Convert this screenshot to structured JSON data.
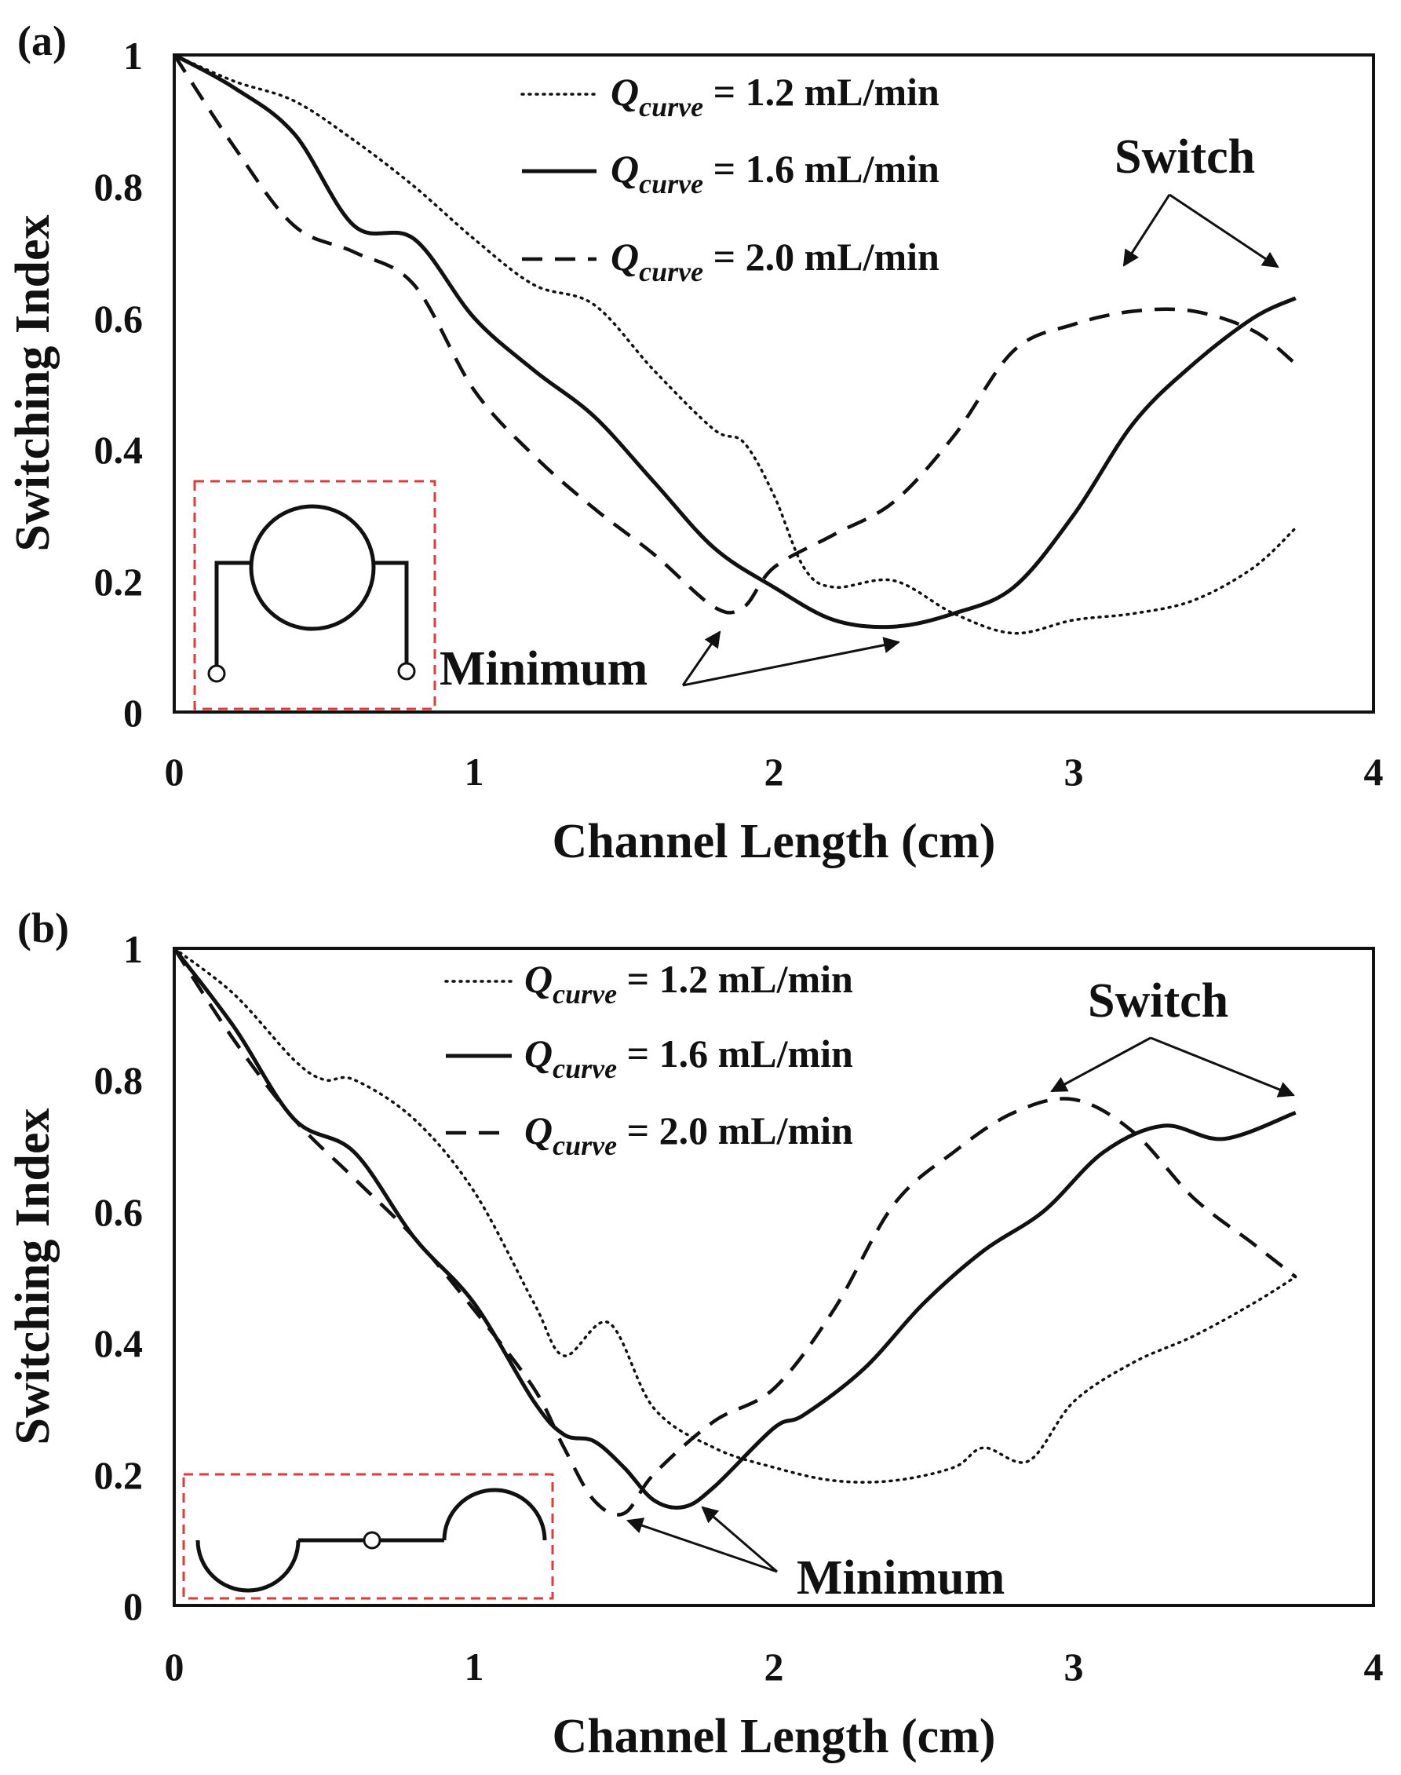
{
  "chart_data": [
    {
      "type": "line",
      "panel_label": "(a)",
      "xlabel": "Channel Length (cm)",
      "ylabel": "Switching Index",
      "xlim": [
        0,
        4
      ],
      "ylim": [
        0,
        1
      ],
      "x_ticks": [
        "0",
        "1",
        "2",
        "3",
        "4"
      ],
      "y_ticks": [
        "0",
        "0.2",
        "0.4",
        "0.6",
        "0.8",
        "1"
      ],
      "grid": false,
      "legend_position": "top-center",
      "series": [
        {
          "name": "Q_curve = 1.2 mL/min",
          "legend_symbol": "Q",
          "legend_subscript": "curve",
          "legend_value": " = 1.2 mL/min",
          "style": "dotted",
          "x": [
            0,
            0.2,
            0.4,
            0.6,
            0.8,
            1.0,
            1.2,
            1.4,
            1.6,
            1.8,
            1.9,
            2.0,
            2.1,
            2.2,
            2.4,
            2.6,
            2.8,
            3.0,
            3.2,
            3.4,
            3.6,
            3.74
          ],
          "y": [
            1.0,
            0.96,
            0.93,
            0.87,
            0.8,
            0.72,
            0.65,
            0.62,
            0.52,
            0.43,
            0.41,
            0.33,
            0.22,
            0.19,
            0.2,
            0.15,
            0.12,
            0.14,
            0.15,
            0.17,
            0.22,
            0.28
          ]
        },
        {
          "name": "Q_curve = 1.6 mL/min",
          "legend_symbol": "Q",
          "legend_subscript": "curve",
          "legend_value": " = 1.6 mL/min",
          "style": "solid",
          "x": [
            0,
            0.2,
            0.4,
            0.6,
            0.8,
            1.0,
            1.2,
            1.4,
            1.6,
            1.8,
            2.0,
            2.2,
            2.4,
            2.6,
            2.8,
            3.0,
            3.2,
            3.4,
            3.6,
            3.74
          ],
          "y": [
            1.0,
            0.95,
            0.88,
            0.74,
            0.72,
            0.6,
            0.52,
            0.45,
            0.35,
            0.25,
            0.19,
            0.14,
            0.13,
            0.15,
            0.19,
            0.3,
            0.44,
            0.53,
            0.6,
            0.63
          ]
        },
        {
          "name": "Q_curve = 2.0 mL/min",
          "legend_symbol": "Q",
          "legend_subscript": "curve",
          "legend_value": " = 2.0 mL/min",
          "style": "dashed",
          "x": [
            0,
            0.2,
            0.4,
            0.6,
            0.8,
            1.0,
            1.2,
            1.4,
            1.6,
            1.8,
            1.9,
            2.0,
            2.2,
            2.4,
            2.6,
            2.8,
            3.0,
            3.2,
            3.4,
            3.6,
            3.74
          ],
          "y": [
            1.0,
            0.86,
            0.74,
            0.7,
            0.65,
            0.49,
            0.39,
            0.31,
            0.24,
            0.16,
            0.16,
            0.22,
            0.27,
            0.32,
            0.42,
            0.55,
            0.59,
            0.61,
            0.61,
            0.58,
            0.53
          ]
        }
      ],
      "annotations": [
        {
          "text": "Switch",
          "targets": [
            {
              "x": 3.1,
              "y": 0.67
            },
            {
              "x": 3.74,
              "y": 0.67
            }
          ]
        },
        {
          "text": "Minimum",
          "targets": [
            {
              "x": 1.83,
              "y": 0.13
            },
            {
              "x": 2.42,
              "y": 0.11
            }
          ]
        }
      ],
      "inset": "microchannel schematic (circular loop)"
    },
    {
      "type": "line",
      "panel_label": "(b)",
      "xlabel": "Channel Length (cm)",
      "ylabel": "Switching Index",
      "xlim": [
        0,
        4
      ],
      "ylim": [
        0,
        1
      ],
      "x_ticks": [
        "0",
        "1",
        "2",
        "3",
        "4"
      ],
      "y_ticks": [
        "0",
        "0.2",
        "0.4",
        "0.6",
        "0.8",
        "1"
      ],
      "grid": false,
      "legend_position": "top-center",
      "series": [
        {
          "name": "Q_curve = 1.2 mL/min",
          "legend_symbol": "Q",
          "legend_subscript": "curve",
          "legend_value": " = 1.2 mL/min",
          "style": "dotted",
          "x": [
            0,
            0.2,
            0.4,
            0.5,
            0.6,
            0.8,
            1.0,
            1.2,
            1.3,
            1.45,
            1.6,
            1.8,
            2.0,
            2.2,
            2.4,
            2.6,
            2.7,
            2.85,
            3.0,
            3.2,
            3.4,
            3.6,
            3.74
          ],
          "y": [
            1.0,
            0.93,
            0.83,
            0.8,
            0.8,
            0.74,
            0.63,
            0.46,
            0.38,
            0.43,
            0.3,
            0.24,
            0.21,
            0.19,
            0.19,
            0.21,
            0.24,
            0.22,
            0.31,
            0.37,
            0.41,
            0.46,
            0.5
          ]
        },
        {
          "name": "Q_curve = 1.6 mL/min",
          "legend_symbol": "Q",
          "legend_subscript": "curve",
          "legend_value": " = 1.6 mL/min",
          "style": "solid",
          "x": [
            0,
            0.2,
            0.4,
            0.6,
            0.8,
            1.0,
            1.2,
            1.3,
            1.4,
            1.5,
            1.6,
            1.7,
            1.8,
            2.0,
            2.1,
            2.3,
            2.5,
            2.7,
            2.9,
            3.1,
            3.3,
            3.5,
            3.74
          ],
          "y": [
            1.0,
            0.88,
            0.74,
            0.69,
            0.56,
            0.46,
            0.31,
            0.26,
            0.25,
            0.21,
            0.16,
            0.15,
            0.18,
            0.27,
            0.29,
            0.36,
            0.46,
            0.54,
            0.6,
            0.69,
            0.73,
            0.71,
            0.75
          ]
        },
        {
          "name": "Q_curve = 2.0 mL/min",
          "legend_symbol": "Q",
          "legend_subscript": "curve",
          "legend_value": " = 2.0 mL/min",
          "style": "dashed",
          "x": [
            0,
            0.2,
            0.4,
            0.6,
            0.8,
            1.0,
            1.2,
            1.3,
            1.4,
            1.5,
            1.6,
            1.8,
            2.0,
            2.2,
            2.4,
            2.6,
            2.8,
            3.0,
            3.2,
            3.4,
            3.6,
            3.74
          ],
          "y": [
            1.0,
            0.86,
            0.74,
            0.65,
            0.56,
            0.45,
            0.33,
            0.24,
            0.16,
            0.14,
            0.2,
            0.28,
            0.33,
            0.45,
            0.61,
            0.69,
            0.75,
            0.77,
            0.72,
            0.62,
            0.55,
            0.5
          ]
        }
      ],
      "annotations": [
        {
          "text": "Switch",
          "targets": [
            {
              "x": 2.88,
              "y": 0.78
            },
            {
              "x": 3.74,
              "y": 0.78
            }
          ]
        },
        {
          "text": "Minimum",
          "targets": [
            {
              "x": 1.52,
              "y": 0.14
            },
            {
              "x": 1.75,
              "y": 0.16
            }
          ]
        }
      ],
      "inset": "microchannel schematic (semicircular bends)"
    }
  ]
}
